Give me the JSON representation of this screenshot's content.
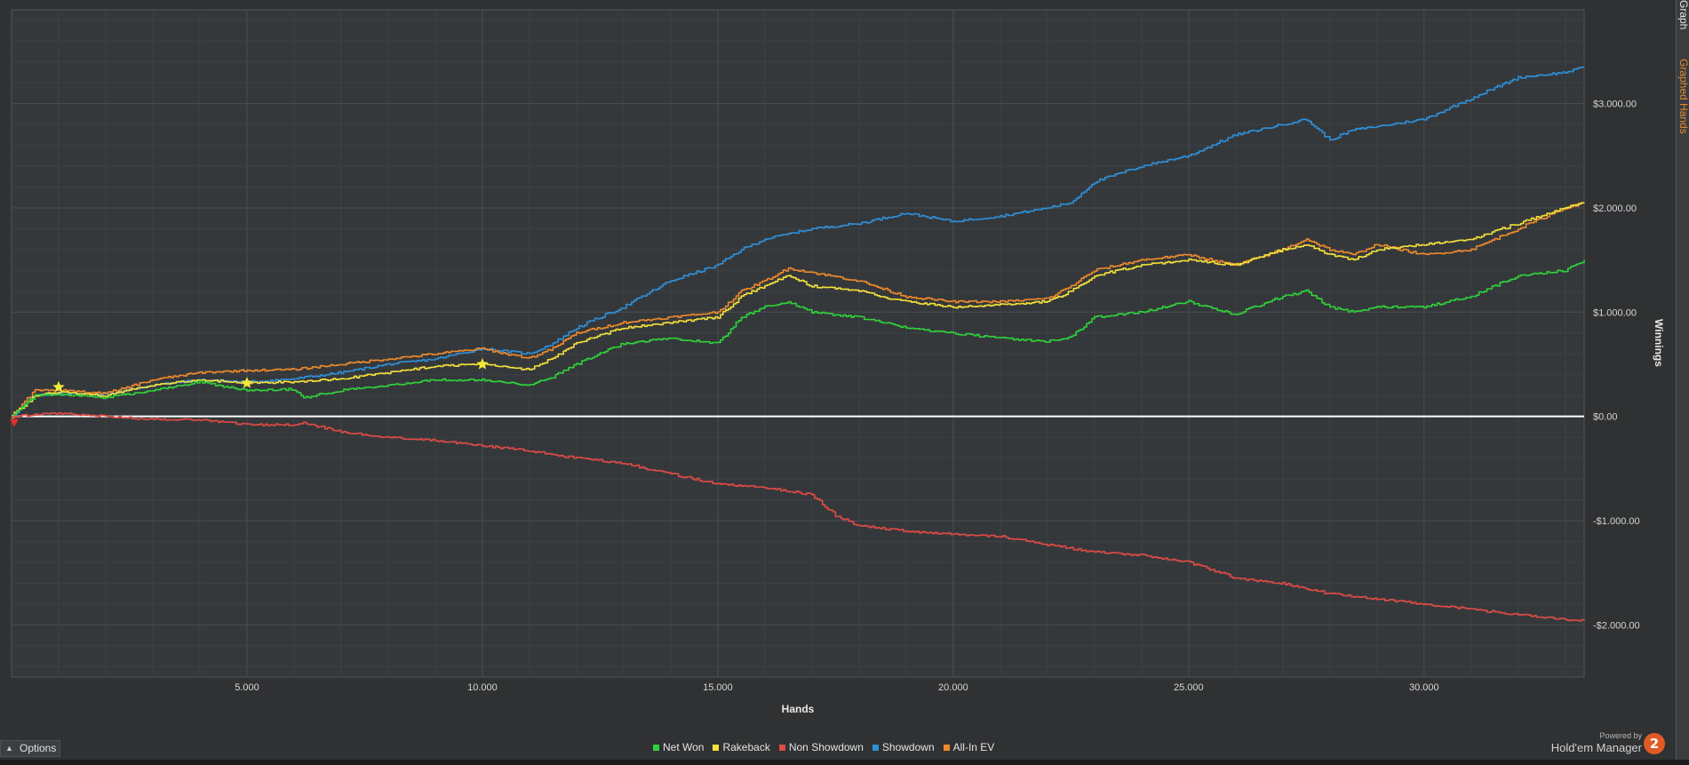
{
  "right_tabs": {
    "graph_tab": "Graph",
    "graph_eo_tab": "Graphed Hands"
  },
  "options_label": "Options",
  "powered_by": "Powered by",
  "brand_name": "Hold'em Manager",
  "brand_logo": "2",
  "colors": {
    "background": "#2f3133",
    "plot_background": "#35383b",
    "grid": "#4a4e52",
    "zero_line": "#ffffff",
    "net_won": "#2fd23a",
    "rakeback": "#f3e13a",
    "non_showdown": "#e04b45",
    "showdown": "#2f8fd8",
    "all_in_ev": "#ee8a2c"
  },
  "legend": [
    {
      "name": "Net Won",
      "color": "#2fd23a"
    },
    {
      "name": "Rakeback",
      "color": "#f3e13a"
    },
    {
      "name": "Non Showdown",
      "color": "#e04b45"
    },
    {
      "name": "Showdown",
      "color": "#2f8fd8"
    },
    {
      "name": "All-In EV",
      "color": "#ee8a2c"
    }
  ],
  "chart_data": {
    "type": "line",
    "xlabel": "Hands",
    "ylabel": "Winnings",
    "xlim": [
      0,
      33400
    ],
    "ylim": [
      -2500,
      3900
    ],
    "x_ticks": [
      5000,
      10000,
      15000,
      20000,
      25000,
      30000
    ],
    "x_tick_labels": [
      "5.000",
      "10.000",
      "15.000",
      "20.000",
      "25.000",
      "30.000"
    ],
    "y_ticks": [
      -2000,
      -1000,
      0,
      1000,
      2000,
      3000
    ],
    "y_tick_labels": [
      "-$2.000.00",
      "-$1.000.00",
      "$0.00",
      "$1.000.00",
      "$2.000.00",
      "$3.000.00"
    ],
    "grid": true,
    "legend_position": "bottom-center",
    "series": [
      {
        "name": "Showdown",
        "color": "#2f8fd8",
        "x": [
          0,
          500,
          1000,
          2000,
          3000,
          4000,
          5000,
          6000,
          7000,
          8000,
          9000,
          10000,
          11000,
          11500,
          12000,
          13000,
          14000,
          15000,
          15500,
          16000,
          16500,
          17000,
          18000,
          19000,
          20000,
          21000,
          22000,
          22500,
          23000,
          24000,
          25000,
          26000,
          27000,
          27500,
          28000,
          28500,
          29000,
          30000,
          31000,
          32000,
          33000,
          33400
        ],
        "y": [
          0,
          200,
          220,
          210,
          300,
          350,
          330,
          360,
          420,
          500,
          550,
          650,
          600,
          700,
          850,
          1050,
          1300,
          1450,
          1600,
          1700,
          1750,
          1800,
          1850,
          1950,
          1870,
          1920,
          2000,
          2050,
          2250,
          2400,
          2500,
          2700,
          2800,
          2850,
          2650,
          2750,
          2780,
          2850,
          3050,
          3250,
          3300,
          3350
        ]
      },
      {
        "name": "All-In EV",
        "color": "#ee8a2c",
        "x": [
          0,
          500,
          1000,
          2000,
          3000,
          4000,
          5000,
          6000,
          7000,
          8000,
          9000,
          10000,
          10500,
          11000,
          11500,
          12000,
          13000,
          14000,
          15000,
          15500,
          16000,
          16500,
          17000,
          18000,
          19000,
          20000,
          21000,
          22000,
          22500,
          23000,
          24000,
          25000,
          26000,
          27000,
          27500,
          28000,
          28500,
          29000,
          30000,
          31000,
          32000,
          33000,
          33400
        ],
        "y": [
          0,
          250,
          250,
          220,
          350,
          420,
          440,
          450,
          500,
          550,
          600,
          650,
          600,
          560,
          650,
          800,
          900,
          950,
          1000,
          1200,
          1300,
          1420,
          1380,
          1300,
          1150,
          1100,
          1100,
          1130,
          1250,
          1400,
          1500,
          1550,
          1450,
          1600,
          1700,
          1600,
          1550,
          1650,
          1550,
          1600,
          1800,
          2000,
          2050
        ]
      },
      {
        "name": "Rakeback",
        "color": "#f3e13a",
        "x": [
          0,
          500,
          1000,
          2000,
          3000,
          4000,
          5000,
          6000,
          7000,
          8000,
          9000,
          10000,
          10500,
          11000,
          11500,
          12000,
          13000,
          14000,
          15000,
          15500,
          16000,
          16500,
          17000,
          18000,
          19000,
          20000,
          21000,
          22000,
          22500,
          23000,
          24000,
          25000,
          26000,
          27000,
          27500,
          28000,
          28500,
          29000,
          30000,
          31000,
          32000,
          33000,
          33400
        ],
        "y": [
          0,
          200,
          230,
          200,
          300,
          350,
          320,
          330,
          360,
          420,
          480,
          500,
          470,
          450,
          560,
          700,
          850,
          900,
          950,
          1150,
          1250,
          1350,
          1250,
          1200,
          1100,
          1050,
          1070,
          1100,
          1200,
          1350,
          1450,
          1500,
          1450,
          1600,
          1650,
          1550,
          1500,
          1600,
          1650,
          1700,
          1850,
          2000,
          2050
        ]
      },
      {
        "name": "Net Won",
        "color": "#2fd23a",
        "x": [
          0,
          500,
          1000,
          2000,
          3000,
          4000,
          5000,
          6000,
          6200,
          7000,
          8000,
          9000,
          10000,
          11000,
          11500,
          12000,
          13000,
          14000,
          15000,
          15500,
          16000,
          16500,
          17000,
          18000,
          19000,
          20000,
          21000,
          22000,
          22500,
          23000,
          24000,
          25000,
          26000,
          27000,
          27500,
          28000,
          28500,
          29000,
          30000,
          31000,
          32000,
          33000,
          33400
        ],
        "y": [
          0,
          200,
          210,
          180,
          250,
          330,
          250,
          260,
          180,
          250,
          300,
          350,
          350,
          300,
          380,
          500,
          700,
          750,
          700,
          950,
          1050,
          1100,
          1000,
          950,
          850,
          800,
          750,
          720,
          760,
          950,
          1000,
          1100,
          980,
          1150,
          1200,
          1050,
          1000,
          1050,
          1050,
          1150,
          1350,
          1400,
          1500
        ]
      },
      {
        "name": "Non Showdown",
        "color": "#e04b45",
        "x": [
          0,
          1000,
          2000,
          3000,
          4000,
          5000,
          6000,
          6200,
          7000,
          8000,
          9000,
          10000,
          11000,
          12000,
          13000,
          14000,
          15000,
          16000,
          17000,
          17500,
          18000,
          19000,
          20000,
          21000,
          22000,
          23000,
          24000,
          25000,
          26000,
          27000,
          28000,
          29000,
          30000,
          31000,
          32000,
          33000,
          33400
        ],
        "y": [
          0,
          30,
          0,
          -30,
          -30,
          -80,
          -80,
          -60,
          -150,
          -200,
          -230,
          -280,
          -330,
          -400,
          -450,
          -550,
          -650,
          -680,
          -750,
          -950,
          -1050,
          -1100,
          -1130,
          -1150,
          -1230,
          -1300,
          -1330,
          -1400,
          -1550,
          -1600,
          -1700,
          -1750,
          -1800,
          -1850,
          -1900,
          -1950,
          -1960
        ]
      }
    ]
  }
}
